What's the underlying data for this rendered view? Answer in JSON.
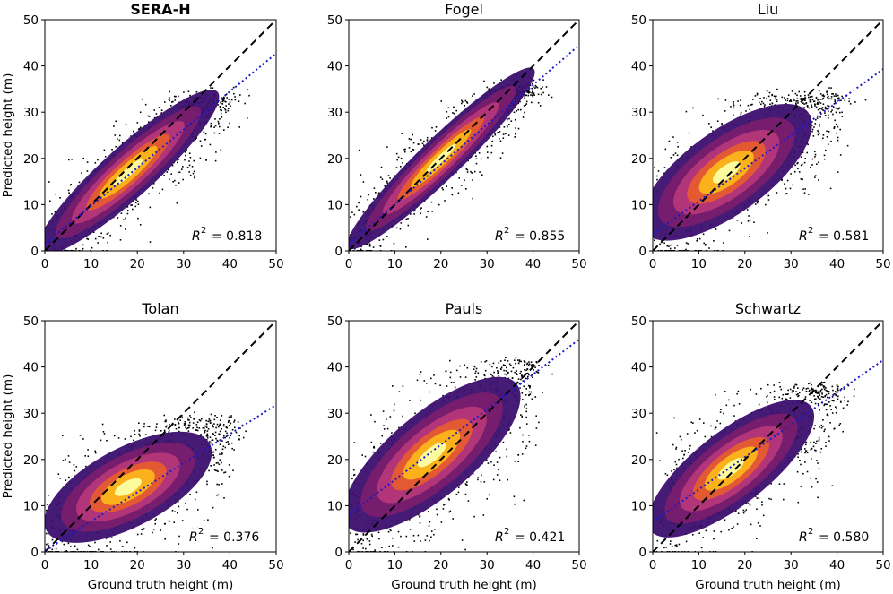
{
  "figure": {
    "x_axis_label": "Ground truth height (m)",
    "y_axis_label": "Predicted height (m)"
  },
  "colors": {
    "identity_line": "#000000",
    "fit_line": "#1a1acc",
    "scatter_outlier": "#000000",
    "density_low": "#3b0f6f",
    "density_mid": "#b5367a",
    "density_high": "#fbb61a",
    "density_peak": "#fcffa4"
  },
  "chart_data": [
    {
      "type": "scatter",
      "title": "SERA-H",
      "title_bold": true,
      "xlim": [
        0,
        50
      ],
      "ylim": [
        0,
        50
      ],
      "xticks": [
        0,
        10,
        20,
        30,
        40,
        50
      ],
      "yticks": [
        0,
        10,
        20,
        30,
        40,
        50
      ],
      "xlabel": "",
      "ylabel": "Predicted height (m)",
      "identity_line": [
        [
          0,
          0
        ],
        [
          50,
          50
        ]
      ],
      "fit_line": [
        [
          0,
          1.5
        ],
        [
          50,
          42.7
        ]
      ],
      "r2_value": "0.818",
      "r2_text": "= 0.818"
    },
    {
      "type": "scatter",
      "title": "Fogel",
      "title_bold": false,
      "xlim": [
        0,
        50
      ],
      "ylim": [
        0,
        50
      ],
      "xticks": [
        0,
        10,
        20,
        30,
        40,
        50
      ],
      "yticks": [
        0,
        10,
        20,
        30,
        40,
        50
      ],
      "xlabel": "",
      "ylabel": "",
      "identity_line": [
        [
          0,
          0
        ],
        [
          50,
          50
        ]
      ],
      "fit_line": [
        [
          0,
          1.5
        ],
        [
          50,
          44.5
        ]
      ],
      "r2_value": "0.855",
      "r2_text": "= 0.855"
    },
    {
      "type": "scatter",
      "title": "Liu",
      "title_bold": false,
      "xlim": [
        0,
        50
      ],
      "ylim": [
        0,
        50
      ],
      "xticks": [
        0,
        10,
        20,
        30,
        40,
        50
      ],
      "yticks": [
        0,
        10,
        20,
        30,
        40,
        50
      ],
      "xlabel": "",
      "ylabel": "",
      "identity_line": [
        [
          0,
          0
        ],
        [
          50,
          50
        ]
      ],
      "fit_line": [
        [
          0,
          3.6
        ],
        [
          50,
          39.3
        ]
      ],
      "r2_value": "0.581",
      "r2_text": "= 0.581"
    },
    {
      "type": "scatter",
      "title": "Tolan",
      "title_bold": false,
      "xlim": [
        0,
        50
      ],
      "ylim": [
        0,
        50
      ],
      "xticks": [
        0,
        10,
        20,
        30,
        40,
        50
      ],
      "yticks": [
        0,
        10,
        20,
        30,
        40,
        50
      ],
      "xlabel": "Ground truth height (m)",
      "ylabel": "Predicted height (m)",
      "identity_line": [
        [
          0,
          0
        ],
        [
          50,
          50
        ]
      ],
      "fit_line": [
        [
          0,
          0.3
        ],
        [
          50,
          31.8
        ]
      ],
      "r2_value": "0.376",
      "r2_text": "= 0.376"
    },
    {
      "type": "scatter",
      "title": "Pauls",
      "title_bold": false,
      "xlim": [
        0,
        50
      ],
      "ylim": [
        0,
        50
      ],
      "xticks": [
        0,
        10,
        20,
        30,
        40,
        50
      ],
      "yticks": [
        0,
        10,
        20,
        30,
        40,
        50
      ],
      "xlabel": "Ground truth height (m)",
      "ylabel": "",
      "identity_line": [
        [
          0,
          0
        ],
        [
          50,
          50
        ]
      ],
      "fit_line": [
        [
          0,
          8.0
        ],
        [
          50,
          46.0
        ]
      ],
      "r2_value": "0.421",
      "r2_text": "= 0.421"
    },
    {
      "type": "scatter",
      "title": "Schwartz",
      "title_bold": false,
      "xlim": [
        0,
        50
      ],
      "ylim": [
        0,
        50
      ],
      "xticks": [
        0,
        10,
        20,
        30,
        40,
        50
      ],
      "yticks": [
        0,
        10,
        20,
        30,
        40,
        50
      ],
      "xlabel": "Ground truth height (m)",
      "ylabel": "",
      "identity_line": [
        [
          0,
          0
        ],
        [
          50,
          50
        ]
      ],
      "fit_line": [
        [
          0,
          6.5
        ],
        [
          50,
          41.5
        ]
      ],
      "r2_value": "0.580",
      "r2_text": "= 0.580"
    }
  ]
}
